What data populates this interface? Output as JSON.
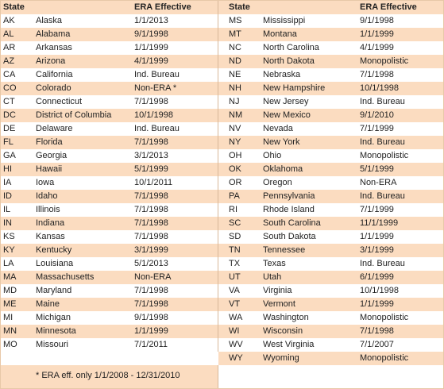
{
  "header": {
    "state_label": "State",
    "era_label": "ERA Effective"
  },
  "left_rows": [
    {
      "abbr": "AK",
      "name": "Alaska",
      "era": "1/1/2013"
    },
    {
      "abbr": "AL",
      "name": "Alabama",
      "era": "9/1/1998"
    },
    {
      "abbr": "AR",
      "name": "Arkansas",
      "era": "1/1/1999"
    },
    {
      "abbr": "AZ",
      "name": "Arizona",
      "era": "4/1/1999"
    },
    {
      "abbr": "CA",
      "name": "California",
      "era": "Ind. Bureau"
    },
    {
      "abbr": "CO",
      "name": "Colorado",
      "era": "Non-ERA *"
    },
    {
      "abbr": "CT",
      "name": "Connecticut",
      "era": "7/1/1998"
    },
    {
      "abbr": "DC",
      "name": "District of Columbia",
      "era": "10/1/1998"
    },
    {
      "abbr": "DE",
      "name": "Delaware",
      "era": "Ind. Bureau"
    },
    {
      "abbr": "FL",
      "name": "Florida",
      "era": "7/1/1998"
    },
    {
      "abbr": "GA",
      "name": "Georgia",
      "era": "3/1/2013"
    },
    {
      "abbr": "HI",
      "name": "Hawaii",
      "era": "5/1/1999"
    },
    {
      "abbr": "IA",
      "name": "Iowa",
      "era": "10/1/2011"
    },
    {
      "abbr": "ID",
      "name": "Idaho",
      "era": "7/1/1998"
    },
    {
      "abbr": "IL",
      "name": "Illinois",
      "era": "7/1/1998"
    },
    {
      "abbr": "IN",
      "name": "Indiana",
      "era": "7/1/1998"
    },
    {
      "abbr": "KS",
      "name": "Kansas",
      "era": "7/1/1998"
    },
    {
      "abbr": "KY",
      "name": "Kentucky",
      "era": "3/1/1999"
    },
    {
      "abbr": "LA",
      "name": "Louisiana",
      "era": "5/1/2013"
    },
    {
      "abbr": "MA",
      "name": "Massachusetts",
      "era": "Non-ERA"
    },
    {
      "abbr": "MD",
      "name": "Maryland",
      "era": "7/1/1998"
    },
    {
      "abbr": "ME",
      "name": "Maine",
      "era": "7/1/1998"
    },
    {
      "abbr": "MI",
      "name": "Michigan",
      "era": "9/1/1998"
    },
    {
      "abbr": "MN",
      "name": "Minnesota",
      "era": "1/1/1999"
    },
    {
      "abbr": "MO",
      "name": "Missouri",
      "era": "7/1/2011"
    }
  ],
  "right_rows": [
    {
      "abbr": "MS",
      "name": "Mississippi",
      "era": "9/1/1998"
    },
    {
      "abbr": "MT",
      "name": "Montana",
      "era": "1/1/1999"
    },
    {
      "abbr": "NC",
      "name": "North Carolina",
      "era": "4/1/1999"
    },
    {
      "abbr": "ND",
      "name": "North Dakota",
      "era": "Monopolistic"
    },
    {
      "abbr": "NE",
      "name": "Nebraska",
      "era": "7/1/1998"
    },
    {
      "abbr": "NH",
      "name": "New Hampshire",
      "era": "10/1/1998"
    },
    {
      "abbr": "NJ",
      "name": "New Jersey",
      "era": "Ind. Bureau"
    },
    {
      "abbr": "NM",
      "name": "New Mexico",
      "era": "9/1/2010"
    },
    {
      "abbr": "NV",
      "name": "Nevada",
      "era": "7/1/1999"
    },
    {
      "abbr": "NY",
      "name": "New York",
      "era": "Ind. Bureau"
    },
    {
      "abbr": "OH",
      "name": "Ohio",
      "era": "Monopolistic"
    },
    {
      "abbr": "OK",
      "name": "Oklahoma",
      "era": "5/1/1999"
    },
    {
      "abbr": "OR",
      "name": "Oregon",
      "era": "Non-ERA"
    },
    {
      "abbr": "PA",
      "name": "Pennsylvania",
      "era": "Ind. Bureau"
    },
    {
      "abbr": "RI",
      "name": "Rhode Island",
      "era": "7/1/1999"
    },
    {
      "abbr": "SC",
      "name": "South Carolina",
      "era": "11/1/1999"
    },
    {
      "abbr": "SD",
      "name": "South Dakota",
      "era": "1/1/1999"
    },
    {
      "abbr": "TN",
      "name": "Tennessee",
      "era": "3/1/1999"
    },
    {
      "abbr": "TX",
      "name": "Texas",
      "era": "Ind. Bureau"
    },
    {
      "abbr": "UT",
      "name": "Utah",
      "era": "6/1/1999"
    },
    {
      "abbr": "VA",
      "name": "Virginia",
      "era": "10/1/1998"
    },
    {
      "abbr": "VT",
      "name": "Vermont",
      "era": "1/1/1999"
    },
    {
      "abbr": "WA",
      "name": "Washington",
      "era": "Monopolistic"
    },
    {
      "abbr": "WI",
      "name": "Wisconsin",
      "era": "7/1/1998"
    },
    {
      "abbr": "WV",
      "name": "West Virginia",
      "era": "7/1/2007"
    },
    {
      "abbr": "WY",
      "name": "Wyoming",
      "era": "Monopolistic"
    }
  ],
  "footnote": "* ERA eff. only 1/1/2008 - 12/31/2010",
  "colors": {
    "stripe": "#fbdcc0",
    "border": "#d8b898"
  }
}
